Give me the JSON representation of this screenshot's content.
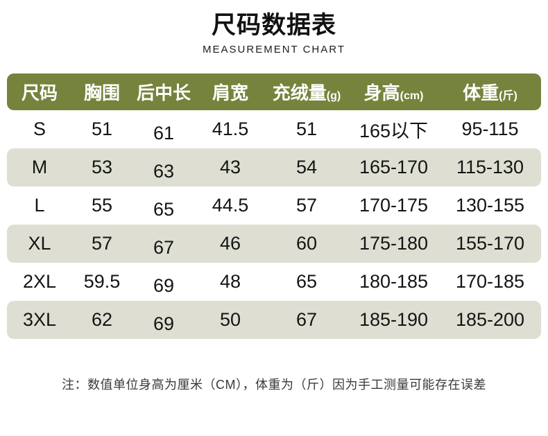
{
  "title": "尺码数据表",
  "subtitle": "MEASUREMENT CHART",
  "table": {
    "columns": [
      {
        "label": "尺码",
        "unit": ""
      },
      {
        "label": "胸围",
        "unit": ""
      },
      {
        "label": "后中长",
        "unit": ""
      },
      {
        "label": "肩宽",
        "unit": ""
      },
      {
        "label": "充绒量",
        "unit": "(g)"
      },
      {
        "label": "身高",
        "unit": "(cm)"
      },
      {
        "label": "体重",
        "unit": "(斤)"
      }
    ],
    "rows": [
      [
        "S",
        "51",
        "61",
        "41.5",
        "51",
        "165以下",
        "95-115"
      ],
      [
        "M",
        "53",
        "63",
        "43",
        "54",
        "165-170",
        "115-130"
      ],
      [
        "L",
        "55",
        "65",
        "44.5",
        "57",
        "170-175",
        "130-155"
      ],
      [
        "XL",
        "57",
        "67",
        "46",
        "60",
        "175-180",
        "155-170"
      ],
      [
        "2XL",
        "59.5",
        "69",
        "48",
        "65",
        "180-185",
        "170-185"
      ],
      [
        "3XL",
        "62",
        "69",
        "50",
        "67",
        "185-190",
        "185-200"
      ]
    ]
  },
  "note": "注：数值单位身高为厘米（CM），体重为（斤）因为手工测量可能存在误差",
  "colors": {
    "header_bg": "#75833c",
    "header_text": "#ffffff",
    "row_alt_bg": "#dedfd2",
    "text": "#141414",
    "note_text": "#3a3a3a"
  }
}
